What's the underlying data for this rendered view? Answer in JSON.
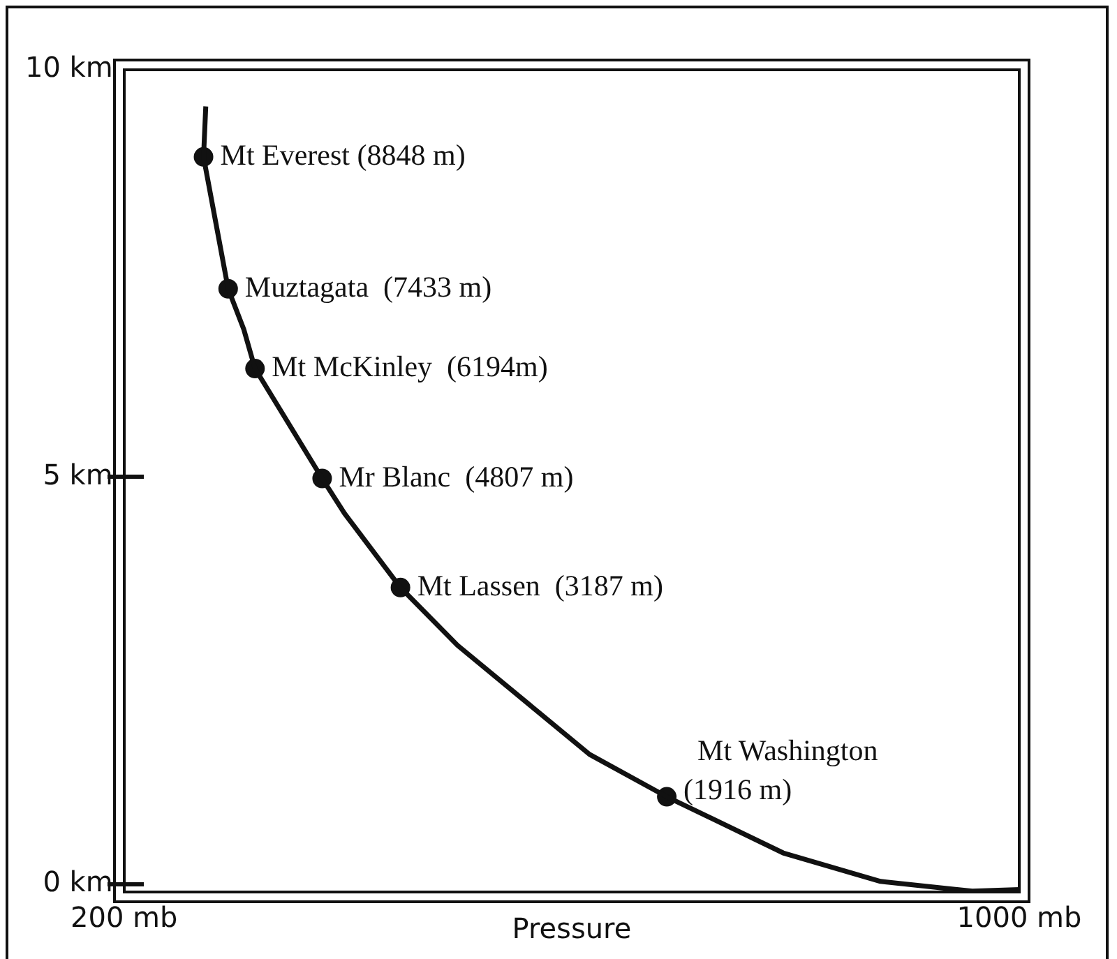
{
  "chart_data": {
    "type": "line",
    "xlabel": "Pressure",
    "xlim": [
      200,
      1000
    ],
    "xticks": [
      {
        "value": 200,
        "label": "200 mb"
      },
      {
        "value": 1000,
        "label": "1000 mb"
      }
    ],
    "ylim": [
      -0.1,
      10
    ],
    "yticks": [
      {
        "value": 0,
        "label": "0 km"
      },
      {
        "value": 5,
        "label": "5 km"
      },
      {
        "value": 10,
        "label": "10 km"
      }
    ],
    "legend": false,
    "line_style": "solid",
    "series": [
      {
        "type": "line",
        "color": "#111111",
        "marker": "none",
        "x": [
          273,
          271,
          293,
          307,
          317,
          377,
          397,
          447,
          498,
          616,
          685,
          789,
          876,
          958,
          1000
        ],
        "values": [
          9.55,
          8.93,
          7.31,
          6.81,
          6.33,
          4.98,
          4.55,
          3.64,
          2.93,
          1.59,
          1.07,
          0.38,
          0.03,
          -0.09,
          -0.07
        ]
      },
      {
        "type": "scatter",
        "color": "#111111",
        "marker": "circle",
        "x": [
          271,
          293,
          317,
          377,
          447,
          685
        ],
        "values": [
          8.93,
          7.31,
          6.33,
          4.98,
          3.64,
          1.07
        ]
      }
    ],
    "annotations": [
      {
        "text": "Mt Everest (8848 m)",
        "x": 271,
        "y": 8.93
      },
      {
        "text": "Muztagata  (7433 m)",
        "x": 293,
        "y": 7.31
      },
      {
        "text": "Mt McKinley  (6194m)",
        "x": 317,
        "y": 6.33
      },
      {
        "text": "Mr Blanc  (4807 m)",
        "x": 377,
        "y": 4.98
      },
      {
        "text": "Mt Lassen  (3187 m)",
        "x": 447,
        "y": 3.64
      },
      {
        "text": "Mt Washington\n(1916 m)",
        "x": 685,
        "y": 1.07
      }
    ]
  }
}
